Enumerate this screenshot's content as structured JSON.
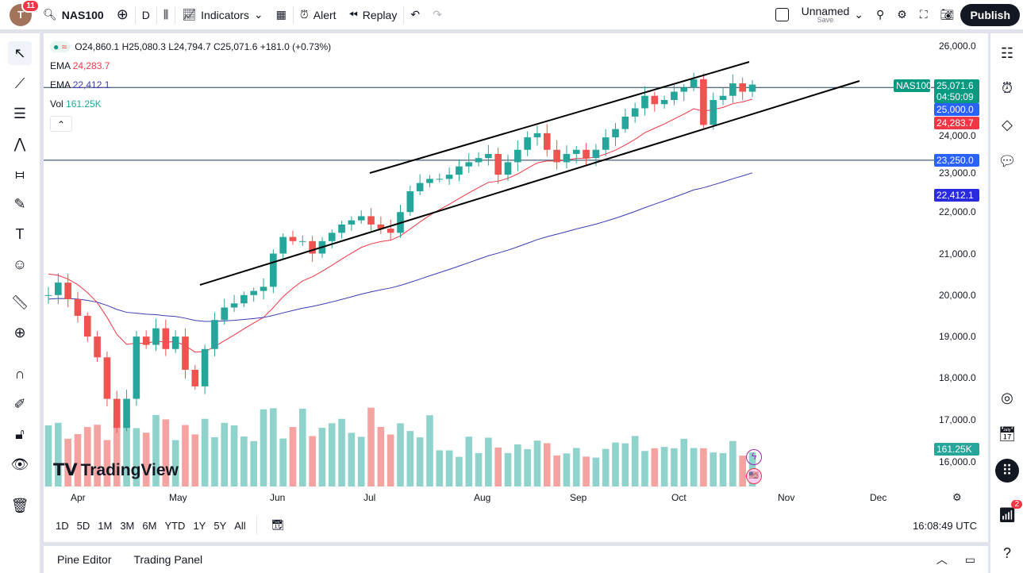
{
  "topbar": {
    "avatar_letter": "T",
    "notif_count": "11",
    "symbol": "NAS100",
    "interval": "D",
    "indicators": "Indicators",
    "alert": "Alert",
    "replay": "Replay",
    "layout_name": "Unnamed",
    "layout_status": "Save",
    "publish": "Publish"
  },
  "legend": {
    "ohlc": "O24,860.1 H25,080.3 L24,794.7 C25,071.6 +181.0 (+0.73%)",
    "ema1_label": "EMA",
    "ema1_value": "24,283.7",
    "ema2_label": "EMA",
    "ema2_value": "22,412.1",
    "vol_label": "Vol",
    "vol_value": "161.25K"
  },
  "price_scale": {
    "ticks": [
      "26,000.0",
      "24,000.0",
      "23,000.0",
      "22,000.0",
      "21,000.0",
      "20,000.0",
      "19,000.0",
      "18,000.0",
      "17,000.0",
      "16,000.0"
    ],
    "labels": {
      "symbol": "NAS100",
      "last": "25,071.6",
      "countdown": "04:50:09",
      "level1": "25,000.0",
      "ema1": "24,283.7",
      "level2": "23,250.0",
      "ema2": "22,412.1",
      "vol": "161.25K"
    }
  },
  "time_axis": [
    "Apr",
    "May",
    "Jun",
    "Jul",
    "Aug",
    "Sep",
    "Oct",
    "Nov",
    "Dec"
  ],
  "ranges": [
    "1D",
    "5D",
    "1M",
    "3M",
    "6M",
    "YTD",
    "1Y",
    "5Y",
    "All"
  ],
  "clock": "16:08:49 UTC",
  "bottom_panel": {
    "pine": "Pine Editor",
    "trading": "Trading Panel"
  },
  "watermark": "TradingView",
  "right_notif": "2",
  "colors": {
    "up": "#26a69a",
    "down": "#ef5350",
    "ema_fast": "#f23645",
    "ema_slow": "#3c3cb4",
    "level": "#2962ff"
  },
  "chart_data": {
    "type": "candlestick",
    "symbol": "NAS100",
    "interval": "D",
    "ylim": [
      16000,
      26000
    ],
    "approx_closes": [
      20000,
      20300,
      19900,
      19500,
      19000,
      18500,
      17500,
      16800,
      17500,
      19000,
      18800,
      19200,
      18700,
      19000,
      18200,
      17800,
      18700,
      19400,
      19700,
      19800,
      20000,
      20100,
      20200,
      21000,
      21400,
      21300,
      21300,
      21000,
      21300,
      21500,
      21700,
      21800,
      21900,
      21700,
      21600,
      21500,
      22000,
      22500,
      22700,
      22800,
      22800,
      22900,
      23100,
      23200,
      23300,
      23400,
      22900,
      23200,
      23500,
      23800,
      23900,
      23500,
      23200,
      23400,
      23500,
      23300,
      23500,
      23800,
      24000,
      24300,
      24500,
      24800,
      24600,
      24700,
      24900,
      25000,
      25200,
      24100,
      24700,
      24800,
      25100,
      24900,
      25071.6
    ],
    "horizontal_levels": [
      25000,
      23250
    ]
  }
}
